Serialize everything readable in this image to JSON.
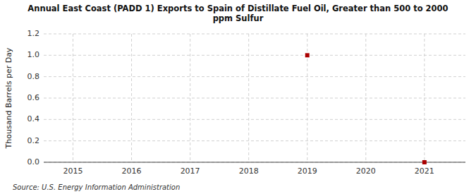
{
  "chart_data": {
    "type": "scatter",
    "title": "Annual East Coast (PADD 1) Exports to Spain of Distillate Fuel Oil, Greater than 500 to 2000\nppm Sulfur",
    "y_label": "Thousand Barrels per Day",
    "annotations": [
      "Source: U.S. Energy Information Administration"
    ],
    "x": [
      2019,
      2021
    ],
    "values": [
      1.0,
      0.0
    ],
    "color": "#aa0000",
    "marker": "square",
    "xlim": [
      2014.5,
      2021.7
    ],
    "ylim": [
      0.0,
      1.2
    ],
    "xticks": [
      2015,
      2016,
      2017,
      2018,
      2019,
      2020,
      2021
    ],
    "yticks": [
      {
        "value": 0.0,
        "label": "0.0"
      },
      {
        "value": 0.2,
        "label": "0.2"
      },
      {
        "value": 0.4,
        "label": "0.4"
      },
      {
        "value": 0.6,
        "label": "0.6"
      },
      {
        "value": 0.8,
        "label": "0.8"
      },
      {
        "value": 1.0,
        "label": "1.0"
      },
      {
        "value": 1.2,
        "label": "1.2"
      }
    ],
    "grid": true
  }
}
